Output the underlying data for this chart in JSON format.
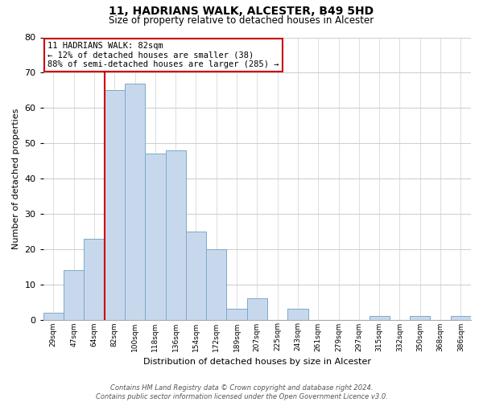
{
  "title": "11, HADRIANS WALK, ALCESTER, B49 5HD",
  "subtitle": "Size of property relative to detached houses in Alcester",
  "xlabel": "Distribution of detached houses by size in Alcester",
  "ylabel": "Number of detached properties",
  "bin_labels": [
    "29sqm",
    "47sqm",
    "64sqm",
    "82sqm",
    "100sqm",
    "118sqm",
    "136sqm",
    "154sqm",
    "172sqm",
    "189sqm",
    "207sqm",
    "225sqm",
    "243sqm",
    "261sqm",
    "279sqm",
    "297sqm",
    "315sqm",
    "332sqm",
    "350sqm",
    "368sqm",
    "386sqm"
  ],
  "bar_values": [
    2,
    14,
    23,
    65,
    67,
    47,
    48,
    25,
    20,
    3,
    6,
    0,
    3,
    0,
    0,
    0,
    1,
    0,
    1,
    0,
    1
  ],
  "bar_color": "#c8d8ec",
  "bar_edge_color": "#7aaac8",
  "vline_x_index": 3,
  "vline_color": "#cc0000",
  "annotation_box_text": "11 HADRIANS WALK: 82sqm\n← 12% of detached houses are smaller (38)\n88% of semi-detached houses are larger (285) →",
  "annotation_box_edge_color": "#cc0000",
  "ylim": [
    0,
    80
  ],
  "yticks": [
    0,
    10,
    20,
    30,
    40,
    50,
    60,
    70,
    80
  ],
  "footer_text": "Contains HM Land Registry data © Crown copyright and database right 2024.\nContains public sector information licensed under the Open Government Licence v3.0.",
  "background_color": "#ffffff",
  "grid_color": "#d0d0d0"
}
